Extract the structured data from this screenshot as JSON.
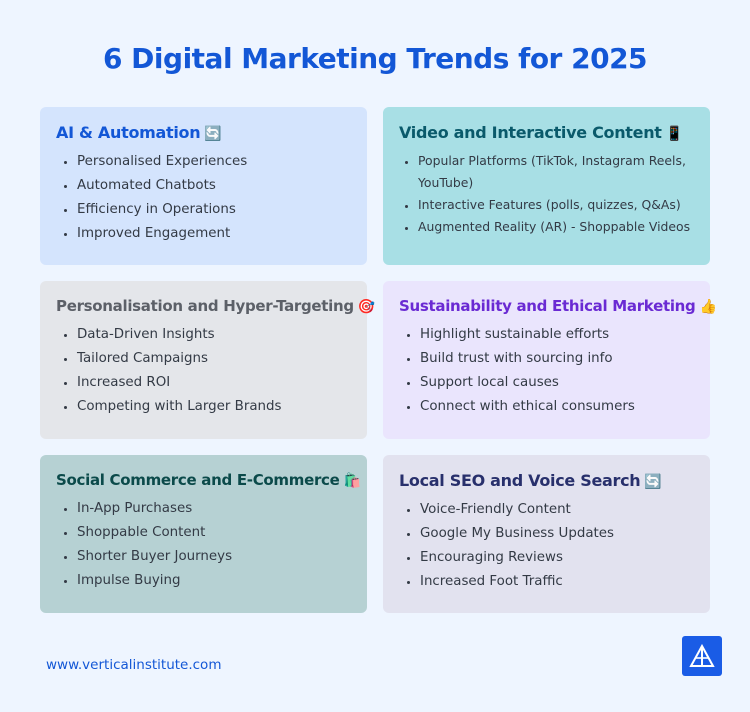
{
  "title": "6 Digital Marketing Trends for 2025",
  "cards": [
    {
      "heading": "AI & Automation",
      "emoji": "🔄",
      "items": [
        "Personalised Experiences",
        "Automated Chatbots",
        "Efficiency in Operations",
        "Improved Engagement"
      ]
    },
    {
      "heading": "Video and Interactive Content",
      "emoji": "📱",
      "items": [
        "Popular Platforms (TikTok, Instagram Reels, YouTube)",
        "Interactive Features (polls, quizzes, Q&As)",
        "Augmented Reality (AR)  - Shoppable Videos"
      ]
    },
    {
      "heading": "Personalisation and Hyper-Targeting",
      "emoji": "🎯",
      "items": [
        "Data-Driven Insights",
        "Tailored Campaigns",
        "Increased ROI",
        "Competing with Larger Brands"
      ]
    },
    {
      "heading": "Sustainability and Ethical Marketing",
      "emoji": "👍",
      "items": [
        "Highlight sustainable efforts",
        "Build trust with sourcing info",
        "Support local causes",
        "Connect with ethical consumers"
      ]
    },
    {
      "heading": "Social Commerce and E-Commerce",
      "emoji": "🛍️",
      "items": [
        "In-App Purchases",
        "Shoppable Content",
        "Shorter Buyer Journeys",
        "Impulse Buying"
      ]
    },
    {
      "heading": "Local SEO and Voice Search",
      "emoji": "🔄",
      "items": [
        "Voice-Friendly Content",
        "Google My Business Updates",
        "Encouraging Reviews",
        "Increased Foot Traffic"
      ]
    }
  ],
  "footer": {
    "url": "www.verticalinstitute.com",
    "logo_icon": "triangle-logo-icon"
  },
  "colors": {
    "background": "#eef5ff",
    "accent": "#1357d6",
    "logo_bg": "#1a5ce6"
  }
}
